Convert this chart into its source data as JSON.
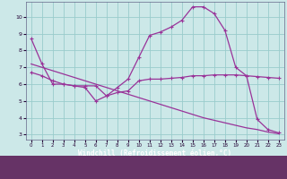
{
  "xlabel": "Windchill (Refroidissement éolien,°C)",
  "background_color": "#cce8e8",
  "grid_color": "#99cccc",
  "line_color": "#993399",
  "label_bar_color": "#663366",
  "xlim": [
    -0.5,
    23.5
  ],
  "ylim": [
    2.7,
    10.9
  ],
  "yticks": [
    3,
    4,
    5,
    6,
    7,
    8,
    9,
    10
  ],
  "xticks": [
    0,
    1,
    2,
    3,
    4,
    5,
    6,
    7,
    8,
    9,
    10,
    11,
    12,
    13,
    14,
    15,
    16,
    17,
    18,
    19,
    20,
    21,
    22,
    23
  ],
  "line1_x": [
    0,
    1,
    2,
    3,
    4,
    5,
    6,
    7,
    8,
    9,
    10,
    11,
    12,
    13,
    14,
    15,
    16,
    17,
    18,
    19,
    20,
    21,
    22,
    23
  ],
  "line1_y": [
    8.7,
    7.2,
    6.0,
    6.0,
    5.9,
    5.8,
    5.0,
    5.3,
    5.8,
    6.3,
    7.6,
    8.9,
    9.1,
    9.4,
    9.8,
    10.6,
    10.6,
    10.2,
    9.2,
    7.0,
    6.5,
    3.9,
    3.3,
    3.1
  ],
  "line2_x": [
    0,
    1,
    2,
    3,
    4,
    5,
    6,
    7,
    8,
    9,
    10,
    11,
    12,
    13,
    14,
    15,
    16,
    17,
    18,
    19,
    20,
    21,
    22,
    23
  ],
  "line2_y": [
    7.2,
    7.0,
    6.8,
    6.6,
    6.4,
    6.2,
    6.0,
    5.8,
    5.6,
    5.4,
    5.2,
    5.0,
    4.8,
    4.6,
    4.4,
    4.2,
    4.0,
    3.85,
    3.7,
    3.55,
    3.4,
    3.3,
    3.15,
    3.05
  ],
  "line3_x": [
    0,
    1,
    2,
    3,
    4,
    5,
    6,
    7,
    8,
    9,
    10,
    11,
    12,
    13,
    14,
    15,
    16,
    17,
    18,
    19,
    20,
    21,
    22,
    23
  ],
  "line3_y": [
    6.7,
    6.5,
    6.2,
    6.0,
    5.9,
    5.9,
    5.9,
    5.3,
    5.5,
    5.6,
    6.2,
    6.3,
    6.3,
    6.35,
    6.4,
    6.5,
    6.5,
    6.55,
    6.55,
    6.55,
    6.5,
    6.45,
    6.4,
    6.35
  ]
}
